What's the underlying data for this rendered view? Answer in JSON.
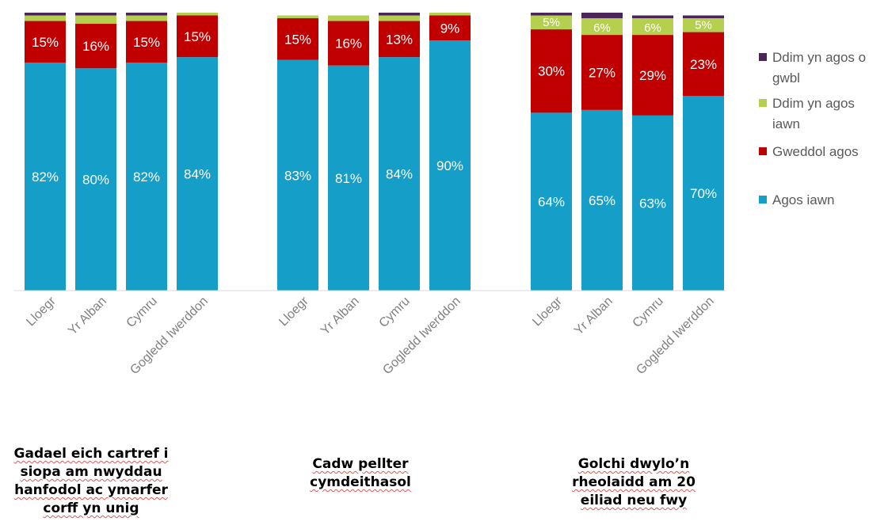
{
  "colors": {
    "agos_iawn": "#159ec8",
    "gweddol_agos": "#c00000",
    "ddim_yn_agos_iawn": "#b5cf4f",
    "ddim_yn_agos_o_gwbl": "#4b2458",
    "axis_text": "#7f7f7f"
  },
  "legend": [
    {
      "name": "Ddim yn agos o gwbl",
      "color": "#4b2458"
    },
    {
      "name": "Ddim yn agos iawn",
      "color": "#b5cf4f"
    },
    {
      "name": "Gweddol agos",
      "color": "#c00000"
    },
    {
      "name": "Agos iawn",
      "color": "#159ec8"
    }
  ],
  "group_titles": [
    "Gadael eich cartref i siopa am nwyddau hanfodol ac ymarfer corff yn unig",
    "Cadw pellter cymdeithasol",
    "Golchi dwylo’n rheolaidd am 20 eiliad neu fwy"
  ],
  "chart_data": {
    "type": "bar",
    "stacked": true,
    "ylim": [
      0,
      100
    ],
    "grid": false,
    "legend_position": "right",
    "categories": [
      "Lloegr",
      "Yr Alban",
      "Cymru",
      "Gogledd Iwerddon"
    ],
    "groups": [
      {
        "title": "Gadael eich cartref i siopa am nwyddau hanfodol ac ymarfer corff yn unig",
        "bars": [
          {
            "category": "Lloegr",
            "agos_iawn": 82,
            "gweddol_agos": 15,
            "ddim_yn_agos_iawn": 2,
            "ddim_yn_agos_o_gwbl": 1
          },
          {
            "category": "Yr Alban",
            "agos_iawn": 80,
            "gweddol_agos": 16,
            "ddim_yn_agos_iawn": 3,
            "ddim_yn_agos_o_gwbl": 1
          },
          {
            "category": "Cymru",
            "agos_iawn": 82,
            "gweddol_agos": 15,
            "ddim_yn_agos_iawn": 2,
            "ddim_yn_agos_o_gwbl": 1
          },
          {
            "category": "Gogledd Iwerddon",
            "agos_iawn": 84,
            "gweddol_agos": 15,
            "ddim_yn_agos_iawn": 1,
            "ddim_yn_agos_o_gwbl": 0
          }
        ]
      },
      {
        "title": "Cadw pellter cymdeithasol",
        "bars": [
          {
            "category": "Lloegr",
            "agos_iawn": 83,
            "gweddol_agos": 15,
            "ddim_yn_agos_iawn": 1,
            "ddim_yn_agos_o_gwbl": 0
          },
          {
            "category": "Yr Alban",
            "agos_iawn": 81,
            "gweddol_agos": 16,
            "ddim_yn_agos_iawn": 2,
            "ddim_yn_agos_o_gwbl": 0
          },
          {
            "category": "Cymru",
            "agos_iawn": 84,
            "gweddol_agos": 13,
            "ddim_yn_agos_iawn": 2,
            "ddim_yn_agos_o_gwbl": 1
          },
          {
            "category": "Gogledd Iwerddon",
            "agos_iawn": 90,
            "gweddol_agos": 9,
            "ddim_yn_agos_iawn": 1,
            "ddim_yn_agos_o_gwbl": 0
          }
        ]
      },
      {
        "title": "Golchi dwylo’n rheolaidd am 20 eiliad neu fwy",
        "bars": [
          {
            "category": "Lloegr",
            "agos_iawn": 64,
            "gweddol_agos": 30,
            "ddim_yn_agos_iawn": 5,
            "ddim_yn_agos_o_gwbl": 1
          },
          {
            "category": "Yr Alban",
            "agos_iawn": 65,
            "gweddol_agos": 27,
            "ddim_yn_agos_iawn": 6,
            "ddim_yn_agos_o_gwbl": 2
          },
          {
            "category": "Cymru",
            "agos_iawn": 63,
            "gweddol_agos": 29,
            "ddim_yn_agos_iawn": 6,
            "ddim_yn_agos_o_gwbl": 1
          },
          {
            "category": "Gogledd Iwerddon",
            "agos_iawn": 70,
            "gweddol_agos": 23,
            "ddim_yn_agos_iawn": 5,
            "ddim_yn_agos_o_gwbl": 1
          }
        ]
      }
    ],
    "series_order": [
      "agos_iawn",
      "gweddol_agos",
      "ddim_yn_agos_iawn",
      "ddim_yn_agos_o_gwbl"
    ],
    "series_names": {
      "agos_iawn": "Agos iawn",
      "gweddol_agos": "Gweddol agos",
      "ddim_yn_agos_iawn": "Ddim yn agos iawn",
      "ddim_yn_agos_o_gwbl": "Ddim yn agos o gwbl"
    },
    "labeled_series": [
      "agos_iawn",
      "gweddol_agos",
      "ddim_yn_agos_iawn"
    ],
    "label_min_value": 5
  }
}
